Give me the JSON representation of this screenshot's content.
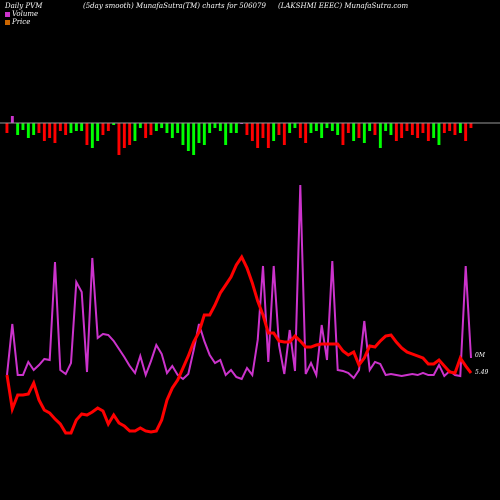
{
  "header": {
    "left": "Daily PVM",
    "center": "(5day smooth) MunafaSutra(TM) charts for 506079",
    "right": "(LAKSHMI EEEC) MunafaSutra.com"
  },
  "legend": [
    {
      "label": "Volume",
      "color": "#cc33cc"
    },
    {
      "label": "Price",
      "color": "#cc6600"
    }
  ],
  "end_labels": {
    "volume": "0M",
    "price": "5.49"
  },
  "colors": {
    "positive": "#cc33cc",
    "negative_up": "#00ff00",
    "negative_down": "#ff0000",
    "volume_line": "#cc33cc",
    "price_line": "#ff0000",
    "background": "#000000",
    "zero_line": "#999999"
  },
  "chart_data": {
    "type": "line",
    "series": [
      {
        "name": "Volume",
        "values": [
          375,
          324,
          375,
          375,
          362,
          370,
          365,
          359,
          360,
          262,
          370,
          374,
          363,
          282,
          292,
          372,
          258,
          338,
          334,
          335,
          341,
          349,
          357,
          366,
          373,
          356,
          375,
          361,
          345,
          354,
          373,
          366,
          375,
          379,
          374,
          350,
          324,
          341,
          355,
          363,
          360,
          375,
          370,
          377,
          379,
          368,
          375,
          340,
          266,
          362,
          266,
          345,
          374,
          330,
          371,
          185,
          374,
          363,
          375,
          325,
          360,
          261,
          370,
          371,
          373,
          378,
          370,
          321,
          370,
          362,
          364,
          375,
          374,
          375,
          376,
          375,
          374,
          375,
          373,
          375,
          375,
          365,
          376,
          371,
          375,
          376,
          266,
          358
        ]
      },
      {
        "name": "Price",
        "values": [
          375,
          409,
          395,
          395,
          394,
          383,
          400,
          410,
          413,
          419,
          424,
          433,
          433,
          420,
          414,
          415,
          412,
          408,
          411,
          424,
          415,
          423,
          426,
          431,
          431,
          428,
          431,
          432,
          431,
          420,
          400,
          388,
          380,
          368,
          356,
          342,
          332,
          315,
          315,
          305,
          293,
          285,
          277,
          265,
          257,
          268,
          283,
          301,
          315,
          333,
          333,
          341,
          342,
          342,
          336,
          341,
          347,
          347,
          345,
          344,
          344,
          344,
          344,
          351,
          355,
          352,
          365,
          358,
          346,
          347,
          341,
          336,
          335,
          342,
          348,
          352,
          354,
          356,
          358,
          364,
          364,
          360,
          366,
          372,
          373,
          358,
          366,
          373
        ]
      },
      {
        "name": "PVM",
        "values": [
          -10,
          7,
          -12,
          -7,
          -15,
          -12,
          -10,
          -18,
          -15,
          -20,
          -8,
          -12,
          -10,
          -8,
          -8,
          -22,
          -25,
          -18,
          -12,
          -8,
          -2,
          -32,
          -25,
          -22,
          -18,
          -5,
          -15,
          -12,
          -8,
          -5,
          -10,
          -15,
          -10,
          -22,
          -28,
          -32,
          -20,
          -22,
          -10,
          -5,
          -8,
          -22,
          -10,
          -10,
          0,
          -12,
          -18,
          -25,
          -15,
          -25,
          -18,
          -12,
          -22,
          -10,
          -5,
          -15,
          -20,
          -10,
          -8,
          -15,
          -5,
          -8,
          -12,
          -22,
          -10,
          -18,
          -15,
          -20,
          -8,
          -12,
          -25,
          -8,
          -12,
          -18,
          -15,
          -8,
          -12,
          -15,
          -10,
          -18,
          -15,
          -22,
          -10,
          -8,
          -12,
          -10,
          -18,
          -5
        ]
      }
    ]
  }
}
